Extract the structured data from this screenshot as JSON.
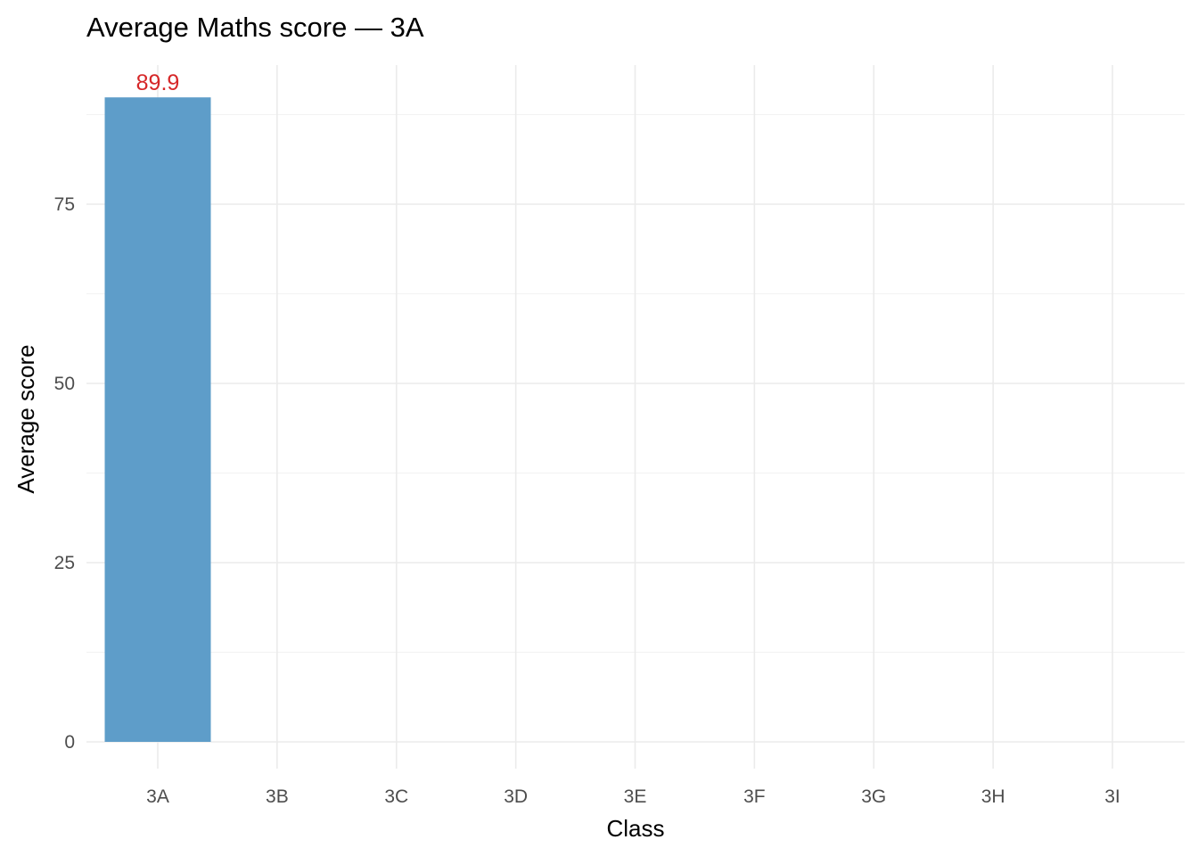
{
  "chart_data": {
    "type": "bar",
    "title": "Average Maths score — 3A",
    "xlabel": "Class",
    "ylabel": "Average score",
    "categories": [
      "3A",
      "3B",
      "3C",
      "3D",
      "3E",
      "3F",
      "3G",
      "3H",
      "3I"
    ],
    "values": [
      89.9,
      null,
      null,
      null,
      null,
      null,
      null,
      null,
      null
    ],
    "data_labels": [
      "89.9",
      "",
      "",
      "",
      "",
      "",
      "",
      "",
      ""
    ],
    "ylim": [
      0,
      94.4
    ],
    "yticks": [
      0,
      25,
      50,
      75
    ],
    "yticks_minor": [
      12.5,
      37.5,
      62.5,
      87.5
    ],
    "grid": true,
    "legend": "none",
    "bar_color": "#5b9bc8",
    "label_color": "#d62728"
  }
}
